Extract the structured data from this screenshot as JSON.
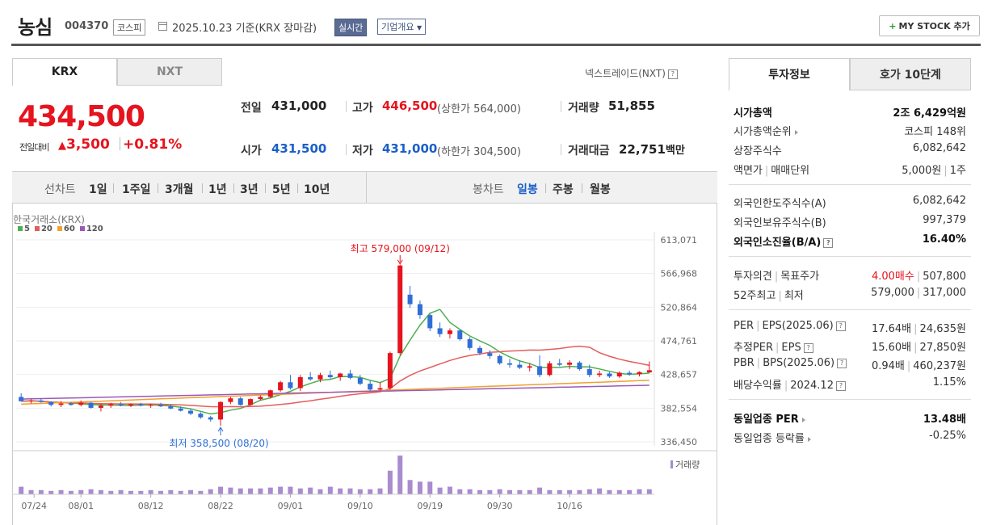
{
  "header": {
    "stock_name": "농심",
    "stock_code": "004370",
    "market": "코스피",
    "date_text": "2025.10.23 기준(KRX 장마감)",
    "realtime_label": "실시간",
    "company_label": "기업개요",
    "mystock_label": "MY STOCK 추가"
  },
  "tabs": {
    "krx": "KRX",
    "nxt": "NXT",
    "nxt_link": "넥스트레이드(NXT)"
  },
  "quote": {
    "price": "434,500",
    "change_label": "전일대비",
    "change_amount": "3,500",
    "change_pct": "+0.81%",
    "prev_label": "전일",
    "prev": "431,000",
    "high_label": "고가",
    "high": "446,500",
    "upper_label": "(상한가",
    "upper": "564,000)",
    "volume_label": "거래량",
    "volume": "51,855",
    "open_label": "시가",
    "open": "431,500",
    "low_label": "저가",
    "low": "431,000",
    "lower_label": "(하한가",
    "lower": "304,500)",
    "amount_label": "거래대금",
    "amount": "22,751",
    "amount_unit": "백만"
  },
  "toolbar": {
    "line_chart": "선차트",
    "periods": [
      "1일",
      "1주일",
      "3개월",
      "1년",
      "3년",
      "5년",
      "10년"
    ],
    "candle_chart": "봉차트",
    "candle_periods": [
      "일봉",
      "주봉",
      "월봉"
    ]
  },
  "chart": {
    "source": "한국거래소(KRX)",
    "ma_legend": [
      {
        "label": "5",
        "color": "#4caf50"
      },
      {
        "label": "20",
        "color": "#e65c5c"
      },
      {
        "label": "60",
        "color": "#f0a030"
      },
      {
        "label": "120",
        "color": "#9b59b6"
      }
    ],
    "high_annot": "최고 579,000 (09/12)",
    "low_annot": "최저 358,500 (08/20)",
    "volume_label": "거래량",
    "y_ticks": [
      "613,071",
      "566,968",
      "520,864",
      "474,761",
      "428,657",
      "382,554",
      "336,450"
    ],
    "x_ticks": [
      "07/24",
      "08/01",
      "08/12",
      "08/22",
      "09/01",
      "09/10",
      "09/19",
      "09/30",
      "10/16"
    ]
  },
  "chart_data": {
    "type": "candlestick",
    "y_range": [
      336450,
      613071
    ],
    "candles": [
      [
        398000,
        403000,
        392000,
        392000
      ],
      [
        392000,
        395000,
        389000,
        393000
      ],
      [
        393000,
        396000,
        390000,
        391000
      ],
      [
        391000,
        392000,
        385000,
        387000
      ],
      [
        387000,
        392000,
        384000,
        389000
      ],
      [
        389000,
        391000,
        386000,
        387000
      ],
      [
        387000,
        393000,
        385000,
        390000
      ],
      [
        390000,
        391000,
        382000,
        383000
      ],
      [
        383000,
        388000,
        378000,
        386000
      ],
      [
        386000,
        390000,
        383000,
        388000
      ],
      [
        388000,
        391000,
        385000,
        386000
      ],
      [
        386000,
        389000,
        384000,
        388000
      ],
      [
        388000,
        390000,
        385000,
        386000
      ],
      [
        386000,
        389000,
        383000,
        387000
      ],
      [
        387000,
        390000,
        384000,
        385000
      ],
      [
        385000,
        388000,
        381000,
        382000
      ],
      [
        382000,
        385000,
        378000,
        379000
      ],
      [
        379000,
        382000,
        373000,
        375000
      ],
      [
        375000,
        377000,
        368000,
        370000
      ],
      [
        370000,
        372000,
        364000,
        367000
      ],
      [
        367000,
        392000,
        358500,
        391000
      ],
      [
        391000,
        398000,
        388000,
        396000
      ],
      [
        396000,
        398000,
        386000,
        387000
      ],
      [
        387000,
        396000,
        386000,
        395000
      ],
      [
        395000,
        400000,
        393000,
        398000
      ],
      [
        398000,
        408000,
        396000,
        407000
      ],
      [
        407000,
        420000,
        405000,
        418000
      ],
      [
        418000,
        428000,
        408000,
        410000
      ],
      [
        410000,
        428000,
        406000,
        425000
      ],
      [
        425000,
        432000,
        420000,
        422000
      ],
      [
        422000,
        431000,
        418000,
        428000
      ],
      [
        428000,
        434000,
        423000,
        425000
      ],
      [
        425000,
        431000,
        420000,
        430000
      ],
      [
        430000,
        435000,
        422000,
        424000
      ],
      [
        424000,
        428000,
        414000,
        416000
      ],
      [
        416000,
        420000,
        406000,
        408000
      ],
      [
        408000,
        418000,
        406000,
        410000
      ],
      [
        410000,
        460000,
        408000,
        458000
      ],
      [
        458000,
        579000,
        455000,
        578000
      ],
      [
        538000,
        550000,
        520000,
        525000
      ],
      [
        525000,
        530000,
        505000,
        510000
      ],
      [
        510000,
        512000,
        488000,
        492000
      ],
      [
        492000,
        500000,
        480000,
        484000
      ],
      [
        484000,
        492000,
        478000,
        489000
      ],
      [
        489000,
        490000,
        475000,
        477000
      ],
      [
        477000,
        480000,
        462000,
        465000
      ],
      [
        465000,
        468000,
        455000,
        458000
      ],
      [
        458000,
        462000,
        450000,
        454000
      ],
      [
        454000,
        456000,
        442000,
        444000
      ],
      [
        444000,
        450000,
        438000,
        442000
      ],
      [
        442000,
        448000,
        436000,
        438000
      ],
      [
        438000,
        444000,
        433000,
        440000
      ],
      [
        440000,
        455000,
        425000,
        428000
      ],
      [
        428000,
        447000,
        426000,
        444000
      ],
      [
        444000,
        450000,
        440000,
        442000
      ],
      [
        442000,
        448000,
        436000,
        445000
      ],
      [
        445000,
        447000,
        434000,
        436000
      ],
      [
        436000,
        442000,
        425000,
        428000
      ],
      [
        428000,
        434000,
        425000,
        430000
      ],
      [
        430000,
        432000,
        424000,
        426000
      ],
      [
        426000,
        433000,
        424000,
        431000
      ],
      [
        431000,
        434000,
        427000,
        429000
      ],
      [
        429000,
        433000,
        426000,
        432000
      ],
      [
        431500,
        446500,
        431000,
        434500
      ]
    ],
    "volume": [
      9,
      5,
      5,
      4,
      5,
      4,
      5,
      6,
      5,
      4,
      5,
      4,
      4,
      5,
      4,
      5,
      4,
      5,
      4,
      6,
      9,
      8,
      7,
      7,
      7,
      8,
      9,
      9,
      7,
      8,
      6,
      9,
      7,
      7,
      6,
      6,
      7,
      28,
      46,
      17,
      15,
      15,
      8,
      9,
      6,
      6,
      5,
      5,
      6,
      5,
      5,
      5,
      8,
      5,
      5,
      5,
      5,
      6,
      7,
      5,
      5,
      5,
      6,
      6
    ]
  },
  "info": {
    "tab_info": "투자정보",
    "tab_hoga": "호가 10단계",
    "market_cap_label": "시가총액",
    "market_cap": "2조 6,429억원",
    "market_cap_rank_label": "시가총액순위",
    "market_cap_rank": "코스피 148위",
    "shares_label": "상장주식수",
    "shares": "6,082,642",
    "par_label": "액면가",
    "unit_label": "매매단위",
    "par": "5,000원",
    "unit": "1주",
    "foreign_limit_label": "외국인한도주식수(A)",
    "foreign_limit": "6,082,642",
    "foreign_hold_label": "외국인보유주식수(B)",
    "foreign_hold": "997,379",
    "foreign_rate_label": "외국인소진율(B/A)",
    "foreign_rate": "16.40%",
    "opinion_label": "투자의견",
    "target_label": "목표주가",
    "opinion": "4.00매수",
    "target": "507,800",
    "w52_label": "52주최고",
    "w52_low_label": "최저",
    "w52_high": "579,000",
    "w52_low": "317,000",
    "per_label": "PER",
    "eps_label": "EPS",
    "per_year": "(2025.06)",
    "per": "17.64배",
    "eps": "24,635원",
    "est_per_label": "추정PER",
    "est_eps_label": "EPS",
    "est_per": "15.60배",
    "est_eps": "27,850원",
    "pbr_label": "PBR",
    "bps_label": "BPS",
    "pbr_year": "(2025.06)",
    "pbr": "0.94배",
    "bps": "460,237원",
    "div_label": "배당수익률",
    "div_year": "2024.12",
    "div": "1.15%",
    "sector_per_label": "동일업종 PER",
    "sector_per": "13.48배",
    "sector_rate_label": "동일업종 등락률",
    "sector_rate": "-0.25%"
  }
}
